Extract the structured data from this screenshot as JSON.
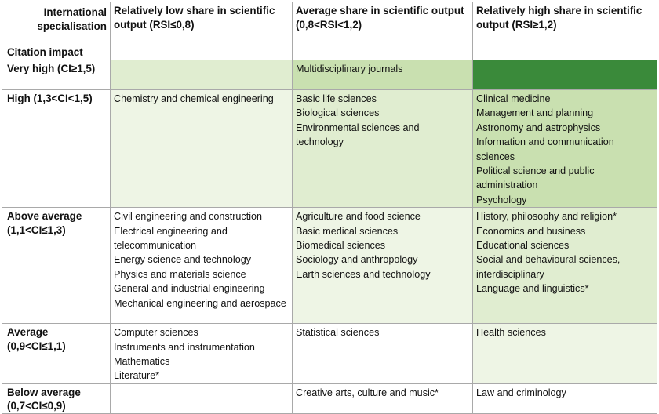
{
  "header": {
    "corner_top": "International specialisation",
    "corner_bottom": "Citation impact",
    "columns": [
      "Relatively low share in scientific output (RSI≤0,8)",
      "Average share in scientific output (0,8<RSI<1,2)",
      "Relatively high share in scientific output (RSI≥1,2)"
    ]
  },
  "rows": [
    {
      "label": "Very high (CI≥1,5)",
      "cells": [
        {
          "shade": "#e0edd0",
          "items": []
        },
        {
          "shade": "#c9e0b0",
          "items": [
            "Multidisciplinary journals"
          ]
        },
        {
          "shade": "#3a8a3a",
          "items": []
        }
      ]
    },
    {
      "label": "High (1,3<CI<1,5)",
      "cells": [
        {
          "shade": "#eef5e5",
          "items": [
            "Chemistry and chemical engineering"
          ]
        },
        {
          "shade": "#e0edd0",
          "items": [
            "Basic life sciences",
            "Biological sciences",
            "Environmental sciences and technology"
          ]
        },
        {
          "shade": "#c9e0b0",
          "items": [
            "Clinical medicine",
            "Management and planning",
            "Astronomy and astrophysics",
            "Information and communication sciences",
            "Political science and public administration",
            "Psychology"
          ]
        }
      ]
    },
    {
      "label": "Above average (1,1<CI≤1,3)",
      "cells": [
        {
          "shade": "#ffffff",
          "items": [
            "Civil engineering and construction",
            "Electrical engineering and telecommunication",
            "Energy science and technology",
            "Physics and materials science",
            "General and industrial engineering",
            "Mechanical engineering and aerospace"
          ]
        },
        {
          "shade": "#eef5e5",
          "items": [
            "Agriculture and food science",
            "Basic medical sciences",
            "Biomedical sciences",
            "Sociology and anthropology",
            "Earth sciences and technology"
          ]
        },
        {
          "shade": "#e0edd0",
          "items": [
            "History, philosophy and religion*",
            "Economics and business",
            "Educational sciences",
            "Social and behavioural sciences, interdisciplinary",
            "Language and linguistics*"
          ]
        }
      ]
    },
    {
      "label": "Average (0,9<CI≤1,1)",
      "cells": [
        {
          "shade": "#ffffff",
          "items": [
            "Computer sciences",
            "Instruments and instrumentation",
            "Mathematics",
            "Literature*"
          ]
        },
        {
          "shade": "#ffffff",
          "items": [
            "Statistical sciences"
          ]
        },
        {
          "shade": "#eef5e5",
          "items": [
            "Health sciences"
          ]
        }
      ]
    },
    {
      "label": "Below average (0,7<CI≤0,9)",
      "cells": [
        {
          "shade": "#ffffff",
          "items": []
        },
        {
          "shade": "#ffffff",
          "items": [
            "Creative arts, culture and music*"
          ]
        },
        {
          "shade": "#ffffff",
          "items": [
            "Law and criminology"
          ]
        }
      ]
    }
  ]
}
